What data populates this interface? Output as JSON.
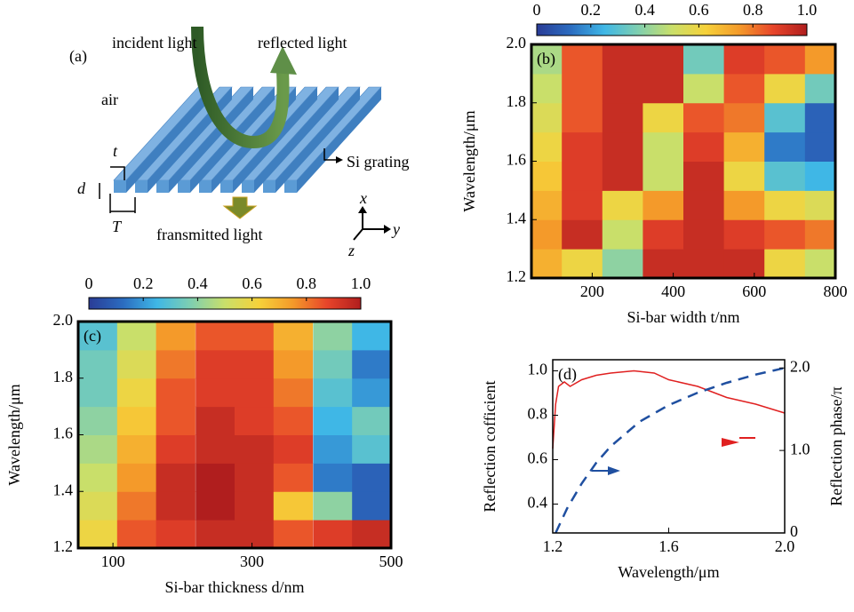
{
  "diagram": {
    "label": "(a)",
    "incident": "incident light",
    "reflected": "reflected light",
    "air": "air",
    "grating": "Si grating",
    "t": "t",
    "d": "d",
    "T": "T",
    "transmitted": "fransmitted light",
    "ax_x": "x",
    "ax_y": "y",
    "ax_z": "z"
  },
  "chart_data": [
    {
      "type": "heatmap",
      "label": "(b)",
      "xlabel": "Si-bar width t/nm",
      "ylabel": "Wavelength/μm",
      "x": [
        75,
        175,
        275,
        375,
        475,
        575,
        675,
        775
      ],
      "y": [
        1.25,
        1.35,
        1.45,
        1.55,
        1.65,
        1.75,
        1.85,
        1.95
      ],
      "z": [
        [
          0.7,
          0.6,
          0.4,
          0.95,
          0.95,
          0.95,
          0.6,
          0.5
        ],
        [
          0.75,
          0.95,
          0.5,
          0.9,
          0.95,
          0.9,
          0.85,
          0.8
        ],
        [
          0.7,
          0.9,
          0.6,
          0.75,
          0.95,
          0.75,
          0.6,
          0.55
        ],
        [
          0.65,
          0.9,
          0.95,
          0.5,
          0.95,
          0.6,
          0.3,
          0.25
        ],
        [
          0.6,
          0.9,
          0.95,
          0.5,
          0.9,
          0.7,
          0.15,
          0.1
        ],
        [
          0.55,
          0.85,
          0.95,
          0.6,
          0.85,
          0.8,
          0.3,
          0.1
        ],
        [
          0.5,
          0.85,
          0.95,
          0.95,
          0.5,
          0.85,
          0.6,
          0.35
        ],
        [
          0.45,
          0.85,
          0.95,
          0.95,
          0.35,
          0.9,
          0.85,
          0.75
        ]
      ],
      "xlim": [
        50,
        800
      ],
      "xticks": [
        200,
        400,
        600,
        800
      ],
      "ylim": [
        1.2,
        2.0
      ],
      "yticks": [
        1.2,
        1.4,
        1.6,
        1.8,
        {
          "value": 2,
          "label": "2.0"
        }
      ],
      "zlim": [
        0,
        1
      ],
      "zticks": [
        0,
        0.2,
        0.4,
        0.6,
        0.8,
        {
          "value": 1,
          "label": "1.0"
        }
      ],
      "colormap": [
        "#2a3c96",
        "#2b6cc0",
        "#3fb7e6",
        "#7fcfb0",
        "#c9df6a",
        "#f6d23a",
        "#f49a2a",
        "#e8452a",
        "#b01e1e"
      ]
    },
    {
      "type": "heatmap",
      "label": "(c)",
      "xlabel": "Si-bar thickness d/nm",
      "ylabel": "Wavelength/μm",
      "x": [
        78,
        134,
        190,
        247,
        303,
        359,
        416,
        472
      ],
      "y": [
        1.25,
        1.35,
        1.45,
        1.55,
        1.65,
        1.75,
        1.85,
        1.95
      ],
      "z": [
        [
          0.6,
          0.85,
          0.9,
          0.95,
          0.95,
          0.85,
          0.9,
          0.95
        ],
        [
          0.55,
          0.8,
          0.95,
          1.0,
          0.95,
          0.65,
          0.4,
          0.1
        ],
        [
          0.5,
          0.75,
          0.95,
          1.0,
          0.95,
          0.85,
          0.15,
          0.1
        ],
        [
          0.45,
          0.7,
          0.9,
          0.95,
          0.95,
          0.9,
          0.2,
          0.3
        ],
        [
          0.4,
          0.65,
          0.85,
          0.95,
          0.9,
          0.85,
          0.25,
          0.35
        ],
        [
          0.35,
          0.6,
          0.85,
          0.9,
          0.9,
          0.8,
          0.3,
          0.2
        ],
        [
          0.35,
          0.55,
          0.8,
          0.9,
          0.9,
          0.75,
          0.35,
          0.15
        ],
        [
          0.3,
          0.5,
          0.75,
          0.85,
          0.85,
          0.7,
          0.4,
          0.25
        ]
      ],
      "xlim": [
        50,
        500
      ],
      "xticks": [
        100,
        300,
        500
      ],
      "ylim": [
        1.2,
        2.0
      ],
      "yticks": [
        1.2,
        1.4,
        1.6,
        1.8,
        {
          "value": 2,
          "label": "2.0"
        }
      ],
      "zlim": [
        0,
        1
      ],
      "zticks": [
        0,
        0.2,
        0.4,
        0.6,
        0.8,
        {
          "value": 1,
          "label": "1.0"
        }
      ],
      "colormap": [
        "#2a3c96",
        "#2b6cc0",
        "#3fb7e6",
        "#7fcfb0",
        "#c9df6a",
        "#f6d23a",
        "#f49a2a",
        "#e8452a",
        "#b01e1e"
      ]
    },
    {
      "type": "line",
      "label": "(d)",
      "xlabel": "Wavelength/μm",
      "ylabel": "Reflection cofficient",
      "y2label": "Reflection phase/π",
      "xlim": [
        1.2,
        2.0
      ],
      "xticks": [
        1.2,
        1.6,
        {
          "value": 2,
          "label": "2.0"
        }
      ],
      "ylim": [
        0.27,
        1.05
      ],
      "yticks": [
        0.4,
        0.6,
        0.8,
        {
          "value": 1,
          "label": "1.0"
        }
      ],
      "y2lim": [
        0,
        2.1
      ],
      "y2ticks": [
        0,
        {
          "value": 1,
          "label": "1.0"
        },
        {
          "value": 2,
          "label": "2.0"
        }
      ],
      "series": [
        {
          "color": "#e02020",
          "dash": false,
          "x": [
            1.2,
            1.21,
            1.22,
            1.24,
            1.26,
            1.3,
            1.35,
            1.4,
            1.48,
            1.55,
            1.6,
            1.7,
            1.8,
            1.9,
            2.0
          ],
          "values": [
            0.65,
            0.85,
            0.93,
            0.95,
            0.93,
            0.96,
            0.98,
            0.99,
            1.0,
            0.99,
            0.96,
            0.93,
            0.88,
            0.85,
            0.81
          ]
        },
        {
          "color": "#1f4fa0",
          "dash": true,
          "axis": "y2",
          "x": [
            1.21,
            1.25,
            1.3,
            1.35,
            1.4,
            1.5,
            1.6,
            1.7,
            1.8,
            1.9,
            2.0
          ],
          "values": [
            0,
            0.3,
            0.6,
            0.85,
            1.05,
            1.35,
            1.55,
            1.7,
            1.82,
            1.92,
            2.0
          ]
        }
      ]
    }
  ]
}
